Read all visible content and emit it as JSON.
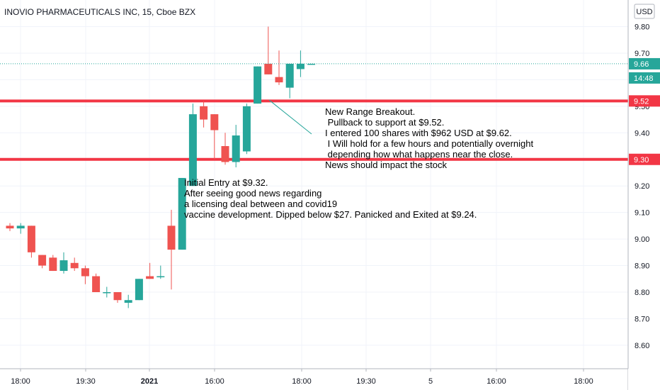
{
  "colors": {
    "up": "#26a69a",
    "down": "#ef5350",
    "level_line": "#f23645",
    "grid": "#f0f3fa",
    "price_line": "#26a69a",
    "time_tag_bg": "#26a69a"
  },
  "chart_data": {
    "type": "candlestick",
    "title": "INOVIO PHARMACEUTICALS INC, 15, Cboe BZX",
    "currency": "USD",
    "ylim": [
      8.5,
      9.87
    ],
    "y_ticks": [
      "9.80",
      "9.70",
      "9.60",
      "9.50",
      "9.40",
      "9.30",
      "9.20",
      "9.10",
      "9.00",
      "8.90",
      "8.80",
      "8.70",
      "8.60"
    ],
    "x_ticks": [
      "18:00",
      "19:30",
      "2021",
      "16:00",
      "18:00",
      "19:30",
      "5",
      "16:00",
      "18:00"
    ],
    "grid": true,
    "candles": [
      {
        "o": 9.05,
        "h": 9.06,
        "l": 9.03,
        "c": 9.04
      },
      {
        "o": 9.04,
        "h": 9.06,
        "l": 9.02,
        "c": 9.05
      },
      {
        "o": 9.05,
        "h": 9.05,
        "l": 8.93,
        "c": 8.95
      },
      {
        "o": 8.94,
        "h": 8.94,
        "l": 8.89,
        "c": 8.9
      },
      {
        "o": 8.93,
        "h": 8.94,
        "l": 8.88,
        "c": 8.88
      },
      {
        "o": 8.88,
        "h": 8.95,
        "l": 8.87,
        "c": 8.92
      },
      {
        "o": 8.91,
        "h": 8.93,
        "l": 8.88,
        "c": 8.89
      },
      {
        "o": 8.89,
        "h": 8.9,
        "l": 8.83,
        "c": 8.86
      },
      {
        "o": 8.86,
        "h": 8.87,
        "l": 8.8,
        "c": 8.8
      },
      {
        "o": 8.8,
        "h": 8.82,
        "l": 8.78,
        "c": 8.8
      },
      {
        "o": 8.8,
        "h": 8.8,
        "l": 8.76,
        "c": 8.77
      },
      {
        "o": 8.76,
        "h": 8.79,
        "l": 8.74,
        "c": 8.77
      },
      {
        "o": 8.77,
        "h": 8.85,
        "l": 8.77,
        "c": 8.85
      },
      {
        "o": 8.86,
        "h": 8.91,
        "l": 8.85,
        "c": 8.85
      },
      {
        "o": 8.86,
        "h": 8.9,
        "l": 8.85,
        "c": 8.86
      },
      {
        "o": 9.05,
        "h": 9.11,
        "l": 8.81,
        "c": 8.96
      },
      {
        "o": 8.96,
        "h": 9.23,
        "l": 8.96,
        "c": 9.23
      },
      {
        "o": 9.2,
        "h": 9.51,
        "l": 9.2,
        "c": 9.47
      },
      {
        "o": 9.5,
        "h": 9.52,
        "l": 9.42,
        "c": 9.45
      },
      {
        "o": 9.47,
        "h": 9.47,
        "l": 9.3,
        "c": 9.41
      },
      {
        "o": 9.35,
        "h": 9.4,
        "l": 9.28,
        "c": 9.29
      },
      {
        "o": 9.29,
        "h": 9.43,
        "l": 9.27,
        "c": 9.39
      },
      {
        "o": 9.33,
        "h": 9.51,
        "l": 9.32,
        "c": 9.5
      },
      {
        "o": 9.51,
        "h": 9.65,
        "l": 9.51,
        "c": 9.65
      },
      {
        "o": 9.66,
        "h": 9.8,
        "l": 9.62,
        "c": 9.62
      },
      {
        "o": 9.61,
        "h": 9.71,
        "l": 9.58,
        "c": 9.59
      },
      {
        "o": 9.57,
        "h": 9.66,
        "l": 9.53,
        "c": 9.66
      },
      {
        "o": 9.64,
        "h": 9.71,
        "l": 9.61,
        "c": 9.66
      },
      {
        "o": 9.66,
        "h": 9.66,
        "l": 9.66,
        "c": 9.66
      }
    ],
    "levels": [
      {
        "value": 9.52,
        "label": "9.52"
      },
      {
        "value": 9.3,
        "label": "9.30"
      }
    ],
    "last_price": {
      "value": 9.66,
      "label": "9.66",
      "countdown": "14:48"
    },
    "annotations": [
      {
        "lines": [
          "New Range Breakout.",
          " Pullback to support at $9.52.",
          "I entered 100 shares with $962 USD at $9.62.",
          " I Will hold for a few hours and potentially overnight",
          "  depending how what happens near the close.",
          "News should impact the stock"
        ]
      },
      {
        "lines": [
          "Initial Entry at $9.32.",
          "After seeing good news regarding",
          "a licensing deal between and covid19",
          "vaccine development. Dipped below $27. Panicked and Exited at $9.24."
        ]
      }
    ]
  }
}
